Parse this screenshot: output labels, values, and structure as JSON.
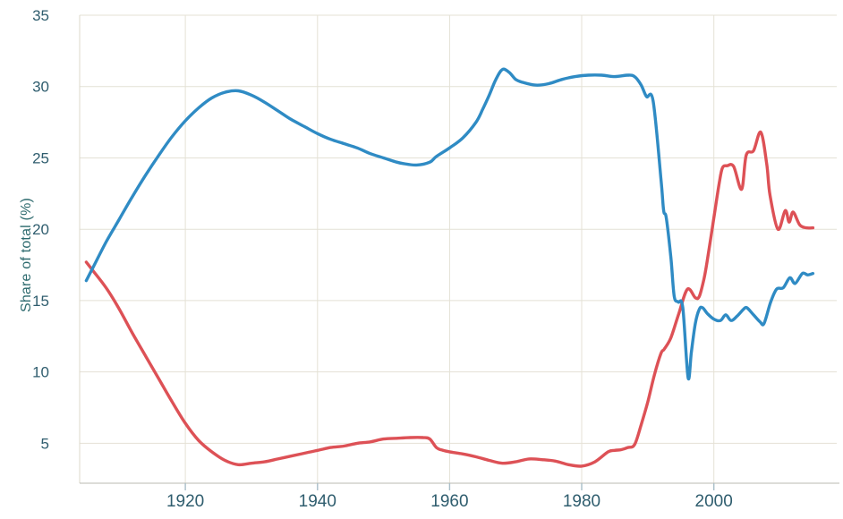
{
  "page": {
    "background": "#ffffff"
  },
  "chart_data": {
    "type": "line",
    "title": "",
    "xlabel": "",
    "ylabel": "Share of total (%)",
    "xlim": [
      1904,
      2018.6
    ],
    "ylim": [
      2.2,
      35
    ],
    "xticks": [
      1920,
      1940,
      1960,
      1980,
      2000
    ],
    "yticks": [
      5,
      10,
      15,
      20,
      25,
      30,
      35
    ],
    "grid": true,
    "legend": "none",
    "colors": {
      "grid": "#e4e1d5",
      "x_axis_line": "#b9b9b1",
      "y_axis_line": "#dcd8cb",
      "tick_mark": "#a9bec8",
      "tick_label": "#2f5d6e",
      "axis_title": "#2d6a6e",
      "blue_series": "#2f8bc4",
      "red_series": "#dd5156"
    },
    "series": [
      {
        "name": "red-series",
        "color": "#dd5156",
        "points": [
          [
            1905,
            17.7
          ],
          [
            1906,
            17.1
          ],
          [
            1908,
            15.9
          ],
          [
            1910,
            14.4
          ],
          [
            1912,
            12.7
          ],
          [
            1914,
            11.1
          ],
          [
            1916,
            9.5
          ],
          [
            1918,
            7.9
          ],
          [
            1920,
            6.4
          ],
          [
            1922,
            5.2
          ],
          [
            1924,
            4.4
          ],
          [
            1926,
            3.8
          ],
          [
            1928,
            3.5
          ],
          [
            1930,
            3.6
          ],
          [
            1932,
            3.7
          ],
          [
            1934,
            3.9
          ],
          [
            1936,
            4.1
          ],
          [
            1938,
            4.3
          ],
          [
            1940,
            4.5
          ],
          [
            1942,
            4.7
          ],
          [
            1944,
            4.8
          ],
          [
            1946,
            5.0
          ],
          [
            1948,
            5.1
          ],
          [
            1950,
            5.3
          ],
          [
            1952,
            5.35
          ],
          [
            1954,
            5.4
          ],
          [
            1956,
            5.4
          ],
          [
            1957,
            5.3
          ],
          [
            1958,
            4.7
          ],
          [
            1959,
            4.5
          ],
          [
            1960,
            4.4
          ],
          [
            1962,
            4.25
          ],
          [
            1964,
            4.05
          ],
          [
            1966,
            3.8
          ],
          [
            1968,
            3.6
          ],
          [
            1970,
            3.7
          ],
          [
            1972,
            3.9
          ],
          [
            1974,
            3.85
          ],
          [
            1976,
            3.75
          ],
          [
            1978,
            3.5
          ],
          [
            1980,
            3.4
          ],
          [
            1982,
            3.7
          ],
          [
            1984,
            4.4
          ],
          [
            1985,
            4.5
          ],
          [
            1986,
            4.55
          ],
          [
            1987,
            4.7
          ],
          [
            1988,
            4.9
          ],
          [
            1989,
            6.3
          ],
          [
            1990,
            7.9
          ],
          [
            1991,
            9.8
          ],
          [
            1992,
            11.3
          ],
          [
            1992.5,
            11.6
          ],
          [
            1993.5,
            12.4
          ],
          [
            1994.7,
            14.1
          ],
          [
            1996,
            15.8
          ],
          [
            1997.2,
            15.2
          ],
          [
            1997.8,
            15.3
          ],
          [
            1998.5,
            16.5
          ],
          [
            1999,
            17.8
          ],
          [
            2000,
            20.8
          ],
          [
            2000.8,
            23.2
          ],
          [
            2001.3,
            24.3
          ],
          [
            2002,
            24.45
          ],
          [
            2003,
            24.4
          ],
          [
            2004.2,
            22.8
          ],
          [
            2004.9,
            25.2
          ],
          [
            2006,
            25.5
          ],
          [
            2007.1,
            26.8
          ],
          [
            2008,
            24.6
          ],
          [
            2008.5,
            22.4
          ],
          [
            2009.7,
            20.0
          ],
          [
            2010.8,
            21.3
          ],
          [
            2011.4,
            20.5
          ],
          [
            2012,
            21.2
          ],
          [
            2013,
            20.3
          ],
          [
            2014,
            20.1
          ],
          [
            2015,
            20.1
          ]
        ]
      },
      {
        "name": "blue-series",
        "color": "#2f8bc4",
        "points": [
          [
            1905,
            16.4
          ],
          [
            1906,
            17.3
          ],
          [
            1908,
            19.1
          ],
          [
            1910,
            20.7
          ],
          [
            1912,
            22.3
          ],
          [
            1914,
            23.8
          ],
          [
            1916,
            25.2
          ],
          [
            1918,
            26.5
          ],
          [
            1920,
            27.6
          ],
          [
            1922,
            28.5
          ],
          [
            1924,
            29.2
          ],
          [
            1926,
            29.6
          ],
          [
            1928,
            29.7
          ],
          [
            1930,
            29.4
          ],
          [
            1932,
            28.9
          ],
          [
            1934,
            28.3
          ],
          [
            1936,
            27.7
          ],
          [
            1938,
            27.2
          ],
          [
            1940,
            26.7
          ],
          [
            1942,
            26.3
          ],
          [
            1944,
            26.0
          ],
          [
            1946,
            25.7
          ],
          [
            1948,
            25.3
          ],
          [
            1950,
            25.0
          ],
          [
            1952,
            24.7
          ],
          [
            1953,
            24.6
          ],
          [
            1955,
            24.5
          ],
          [
            1957,
            24.7
          ],
          [
            1958,
            25.1
          ],
          [
            1960,
            25.7
          ],
          [
            1962,
            26.4
          ],
          [
            1964,
            27.5
          ],
          [
            1965,
            28.4
          ],
          [
            1966,
            29.4
          ],
          [
            1967,
            30.5
          ],
          [
            1968,
            31.2
          ],
          [
            1969,
            31.0
          ],
          [
            1970,
            30.5
          ],
          [
            1971,
            30.3
          ],
          [
            1973,
            30.1
          ],
          [
            1975,
            30.2
          ],
          [
            1977,
            30.5
          ],
          [
            1979,
            30.7
          ],
          [
            1981,
            30.8
          ],
          [
            1983,
            30.8
          ],
          [
            1985,
            30.7
          ],
          [
            1987,
            30.8
          ],
          [
            1988,
            30.7
          ],
          [
            1989,
            30.1
          ],
          [
            1989.8,
            29.3
          ],
          [
            1990.8,
            29.0
          ],
          [
            1992,
            23.5
          ],
          [
            1992.4,
            21.3
          ],
          [
            1992.8,
            20.8
          ],
          [
            1993.5,
            18.0
          ],
          [
            1994,
            15.3
          ],
          [
            1994.6,
            14.9
          ],
          [
            1995.3,
            14.5
          ],
          [
            1996.1,
            9.6
          ],
          [
            1996.6,
            11.4
          ],
          [
            1997.2,
            13.4
          ],
          [
            1997.8,
            14.4
          ],
          [
            1998.3,
            14.5
          ],
          [
            1999,
            14.1
          ],
          [
            2000,
            13.7
          ],
          [
            2001,
            13.6
          ],
          [
            2001.8,
            14.0
          ],
          [
            2002.6,
            13.6
          ],
          [
            2003.5,
            13.9
          ],
          [
            2004.5,
            14.4
          ],
          [
            2005,
            14.5
          ],
          [
            2006,
            14.0
          ],
          [
            2007,
            13.5
          ],
          [
            2007.6,
            13.4
          ],
          [
            2008.6,
            14.9
          ],
          [
            2009.5,
            15.8
          ],
          [
            2010.5,
            15.9
          ],
          [
            2011.5,
            16.6
          ],
          [
            2012.3,
            16.2
          ],
          [
            2013.4,
            16.9
          ],
          [
            2014.2,
            16.8
          ],
          [
            2015,
            16.9
          ]
        ]
      }
    ]
  }
}
